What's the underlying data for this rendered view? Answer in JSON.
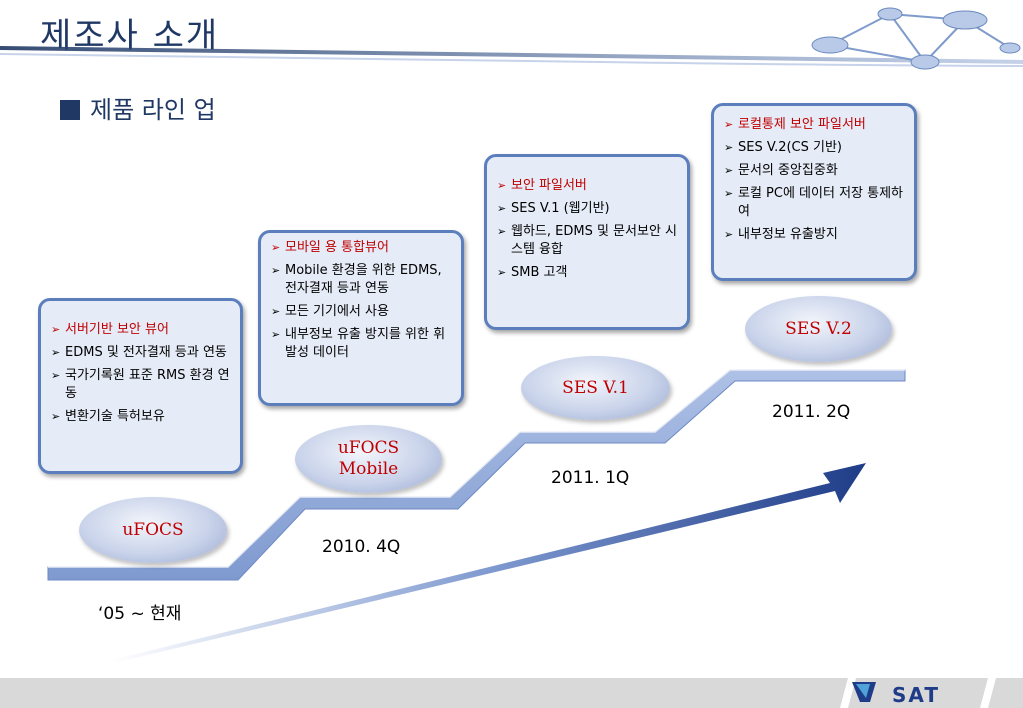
{
  "header": {
    "title": "제조사 소개"
  },
  "section": {
    "subtitle": "제품 라인 업"
  },
  "boxes": [
    {
      "items": [
        "서버기반 보안 뷰어",
        "EDMS 및 전자결재 등과 연동",
        "국가기록원 표준 RMS 환경 연동",
        "변환기술 특허보유"
      ]
    },
    {
      "items": [
        "모바일 용 통합뷰어",
        "Mobile 환경을 위한 EDMS, 전자결재 등과 연동",
        "모든 기기에서 사용",
        "내부정보 유출 방지를 위한 휘발성 데이터"
      ]
    },
    {
      "items": [
        "보안 파일서버",
        "SES V.1 (웹기반)",
        "웹하드, EDMS 및 문서보안 시스템 융합",
        "SMB 고객"
      ]
    },
    {
      "items": [
        "로컬통제 보안 파일서버",
        "SES V.2(CS 기반)",
        "문서의 중앙집중화",
        "로컬 PC에 데이터 저장 통제하여",
        "내부정보 유출방지"
      ]
    }
  ],
  "products": [
    {
      "name": "uFOCS"
    },
    {
      "name_line1": "uFOCS",
      "name_line2": "Mobile"
    },
    {
      "name": "SES V.1"
    },
    {
      "name": "SES V.2"
    }
  ],
  "dates": [
    "‘05 ~ 현재",
    "2010. 4Q",
    "2011. 1Q",
    "2011. 2Q"
  ],
  "logo": {
    "text": "SAT"
  },
  "colors": {
    "title": "#1f3864",
    "highlight": "#c00000",
    "box_border": "#5b7fbd",
    "box_fill": "#e6ecf7",
    "step": "#8faadc",
    "arrow": "#1f3c88"
  }
}
